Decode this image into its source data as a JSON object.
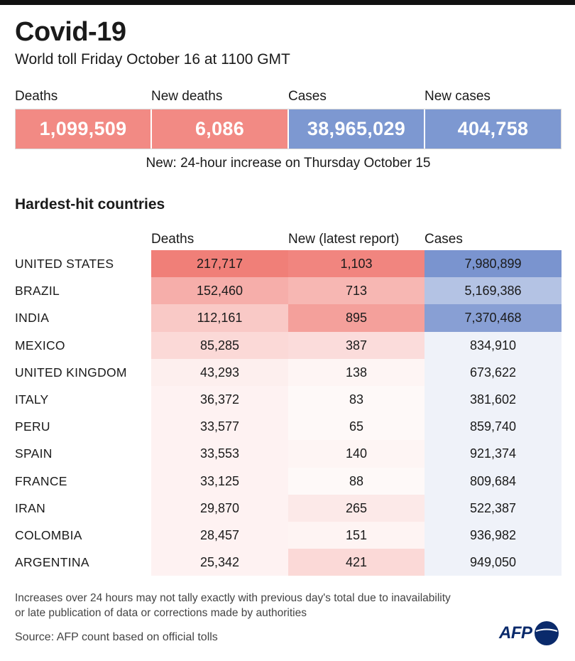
{
  "header": {
    "title": "Covid-19",
    "subtitle": "World toll Friday October 16 at 1100 GMT"
  },
  "kpis": [
    {
      "label": "Deaths",
      "value": "1,099,509",
      "color": "#f28a84"
    },
    {
      "label": "New deaths",
      "value": "6,086",
      "color": "#f28a84"
    },
    {
      "label": "Cases",
      "value": "38,965,029",
      "color": "#7d98d1"
    },
    {
      "label": "New cases",
      "value": "404,758",
      "color": "#7d98d1"
    }
  ],
  "kpi_note": "New: 24-hour increase on Thursday October 15",
  "section_title": "Hardest-hit countries",
  "columns": [
    "Deaths",
    "New (latest report)",
    "Cases"
  ],
  "colors": {
    "deaths_scale": "#f07f78",
    "cases_scale": "#7a94cf",
    "cases_low": "#eef1f8",
    "logo_circle": "#0a2a6b"
  },
  "chart_data": {
    "type": "table",
    "title": "Hardest-hit countries",
    "columns": [
      "Deaths",
      "New (latest report)",
      "Cases"
    ],
    "rows": [
      {
        "country": "UNITED STATES",
        "deaths": "217,717",
        "new": "1,103",
        "cases": "7,980,899",
        "deaths_val": 217717,
        "new_val": 1103,
        "cases_val": 7980899
      },
      {
        "country": "BRAZIL",
        "deaths": "152,460",
        "new": "713",
        "cases": "5,169,386",
        "deaths_val": 152460,
        "new_val": 713,
        "cases_val": 5169386
      },
      {
        "country": "INDIA",
        "deaths": "112,161",
        "new": "895",
        "cases": "7,370,468",
        "deaths_val": 112161,
        "new_val": 895,
        "cases_val": 7370468
      },
      {
        "country": "MEXICO",
        "deaths": "85,285",
        "new": "387",
        "cases": "834,910",
        "deaths_val": 85285,
        "new_val": 387,
        "cases_val": 834910
      },
      {
        "country": "UNITED KINGDOM",
        "deaths": "43,293",
        "new": "138",
        "cases": "673,622",
        "deaths_val": 43293,
        "new_val": 138,
        "cases_val": 673622
      },
      {
        "country": "ITALY",
        "deaths": "36,372",
        "new": "83",
        "cases": "381,602",
        "deaths_val": 36372,
        "new_val": 83,
        "cases_val": 381602
      },
      {
        "country": "PERU",
        "deaths": "33,577",
        "new": "65",
        "cases": "859,740",
        "deaths_val": 33577,
        "new_val": 65,
        "cases_val": 859740
      },
      {
        "country": "SPAIN",
        "deaths": "33,553",
        "new": "140",
        "cases": "921,374",
        "deaths_val": 33553,
        "new_val": 140,
        "cases_val": 921374
      },
      {
        "country": "FRANCE",
        "deaths": "33,125",
        "new": "88",
        "cases": "809,684",
        "deaths_val": 33125,
        "new_val": 88,
        "cases_val": 809684
      },
      {
        "country": "IRAN",
        "deaths": "29,870",
        "new": "265",
        "cases": "522,387",
        "deaths_val": 29870,
        "new_val": 265,
        "cases_val": 522387
      },
      {
        "country": "COLOMBIA",
        "deaths": "28,457",
        "new": "151",
        "cases": "936,982",
        "deaths_val": 28457,
        "new_val": 151,
        "cases_val": 936982
      },
      {
        "country": "ARGENTINA",
        "deaths": "25,342",
        "new": "421",
        "cases": "949,050",
        "deaths_val": 25342,
        "new_val": 421,
        "cases_val": 949050
      }
    ]
  },
  "footnote": {
    "line1": "Increases over 24 hours may not tally exactly with previous day's total due to inavailability",
    "line2": "or late publication of data or corrections made by authorities"
  },
  "source": "Source: AFP count based on official tolls",
  "logo": {
    "text": "AFP"
  }
}
